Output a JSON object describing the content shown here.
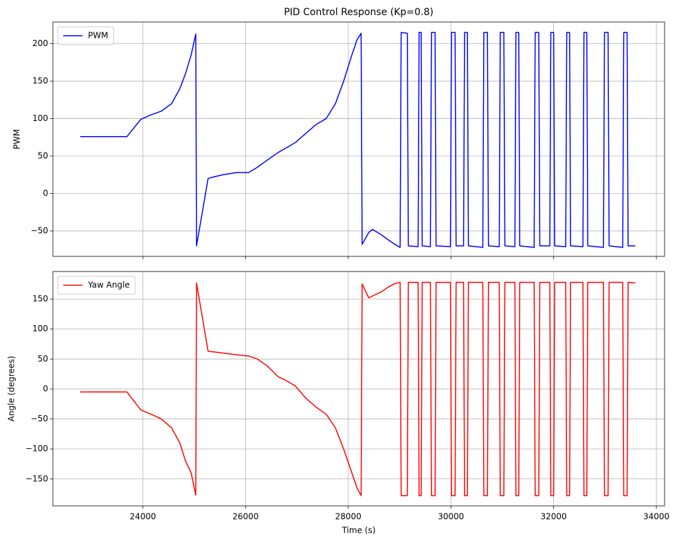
{
  "chart_data": [
    {
      "type": "line",
      "title": "PID Control Response (Kp=0.8)",
      "ylabel": "PWM",
      "xlim": [
        22248,
        34160
      ],
      "ylim": [
        -84,
        229
      ],
      "yticks": [
        {
          "value": -50,
          "label": "−50"
        },
        0,
        50,
        100,
        150,
        200
      ],
      "grid": true,
      "legend": "upper left",
      "x": [
        22780,
        23690,
        23960,
        24160,
        24360,
        24560,
        24720,
        24830,
        24940,
        25030,
        25045,
        25270,
        25370,
        25560,
        25830,
        26060,
        26230,
        26430,
        26640,
        26770,
        26970,
        27170,
        27370,
        27570,
        27750,
        27910,
        28070,
        28170,
        28250,
        28270,
        28400,
        28470,
        28640,
        28780,
        28910,
        29010,
        29030,
        29150,
        29170,
        29360,
        29380,
        29420,
        29440,
        29600,
        29620,
        29690,
        29710,
        29990,
        30010,
        30080,
        30100,
        30245,
        30265,
        30320,
        30340,
        30620,
        30640,
        30710,
        30730,
        30940,
        30960,
        31030,
        31050,
        31245,
        31265,
        31320,
        31340,
        31620,
        31640,
        31710,
        31730,
        31925,
        31945,
        32000,
        32020,
        32235,
        32255,
        32310,
        32330,
        32570,
        32590,
        32645,
        32665,
        32970,
        32990,
        33060,
        33080,
        33345,
        33365,
        33430,
        33450,
        33590
      ],
      "series": [
        {
          "name": "PWM",
          "color": "#0000ff",
          "values": [
            76,
            76,
            99,
            105,
            110,
            120,
            140,
            160,
            185,
            213,
            -70,
            20,
            22,
            25,
            28,
            28,
            35,
            45,
            55,
            60,
            68,
            80,
            92,
            100,
            120,
            150,
            185,
            205,
            214,
            -68,
            -52,
            -48,
            -55,
            -62,
            -68,
            -72,
            215,
            214,
            -70,
            -71,
            215,
            215,
            -70,
            -71,
            215,
            215,
            -70,
            -71,
            215,
            215,
            -70,
            -70,
            215,
            215,
            -70,
            -72,
            215,
            215,
            -70,
            -71,
            215,
            215,
            -70,
            -71,
            215,
            215,
            -70,
            -72,
            215,
            215,
            -70,
            -70,
            215,
            215,
            -70,
            -71,
            215,
            215,
            -70,
            -71,
            215,
            215,
            -70,
            -72,
            215,
            215,
            -70,
            -72,
            215,
            215,
            -70,
            -70
          ]
        }
      ]
    },
    {
      "type": "line",
      "xlabel": "Time (s)",
      "ylabel": "Angle (degrees)",
      "xlim": [
        22248,
        34160
      ],
      "ylim": [
        -195,
        196
      ],
      "xticks": [
        24000,
        26000,
        28000,
        30000,
        32000,
        34000
      ],
      "yticks": [
        {
          "value": -150,
          "label": "−150"
        },
        {
          "value": -100,
          "label": "−100"
        },
        {
          "value": -50,
          "label": "−50"
        },
        0,
        50,
        100,
        150
      ],
      "grid": true,
      "legend": "upper left",
      "x": [
        22780,
        23690,
        23960,
        24160,
        24360,
        24560,
        24720,
        24830,
        24940,
        25030,
        25045,
        25270,
        25370,
        25560,
        25830,
        26060,
        26230,
        26430,
        26640,
        26770,
        26970,
        27170,
        27370,
        27570,
        27750,
        27910,
        28070,
        28170,
        28250,
        28270,
        28400,
        28470,
        28640,
        28780,
        28910,
        29010,
        29030,
        29150,
        29170,
        29360,
        29380,
        29420,
        29440,
        29600,
        29620,
        29690,
        29710,
        29990,
        30010,
        30080,
        30100,
        30245,
        30265,
        30320,
        30340,
        30620,
        30640,
        30710,
        30730,
        30940,
        30960,
        31030,
        31050,
        31245,
        31265,
        31320,
        31340,
        31620,
        31640,
        31710,
        31730,
        31925,
        31945,
        32000,
        32020,
        32235,
        32255,
        32310,
        32330,
        32570,
        32590,
        32645,
        32665,
        32970,
        32990,
        33060,
        33080,
        33345,
        33365,
        33430,
        33450,
        33590
      ],
      "series": [
        {
          "name": "Yaw Angle",
          "color": "#ff0000",
          "values": [
            -5,
            -5,
            -35,
            -42,
            -50,
            -65,
            -90,
            -120,
            -140,
            -177,
            177,
            63,
            62,
            60,
            57,
            55,
            50,
            38,
            20,
            15,
            5,
            -15,
            -30,
            -42,
            -65,
            -100,
            -140,
            -165,
            -178,
            175,
            152,
            155,
            162,
            170,
            176,
            178,
            -178,
            -178,
            178,
            178,
            -178,
            -178,
            178,
            178,
            -178,
            -178,
            178,
            178,
            -178,
            -178,
            178,
            178,
            -178,
            -178,
            178,
            178,
            -178,
            -178,
            178,
            178,
            -178,
            -178,
            178,
            178,
            -178,
            -178,
            178,
            178,
            -178,
            -178,
            178,
            178,
            -178,
            -178,
            178,
            178,
            -178,
            -178,
            178,
            178,
            -178,
            -178,
            178,
            178,
            -178,
            -178,
            178,
            178,
            -178,
            -178,
            178,
            177
          ]
        }
      ]
    }
  ]
}
